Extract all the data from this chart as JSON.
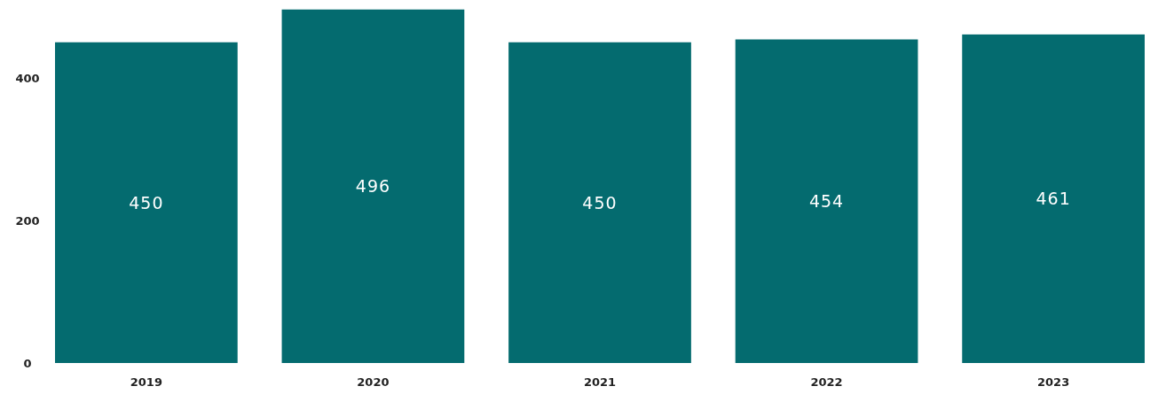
{
  "chart_data": {
    "type": "bar",
    "categories": [
      "2019",
      "2020",
      "2021",
      "2022",
      "2023"
    ],
    "values": [
      450,
      496,
      450,
      454,
      461
    ],
    "color": "#046b6f",
    "ylim": [
      0,
      500
    ],
    "yticks": [
      0,
      200,
      400
    ],
    "data_labels": true
  }
}
